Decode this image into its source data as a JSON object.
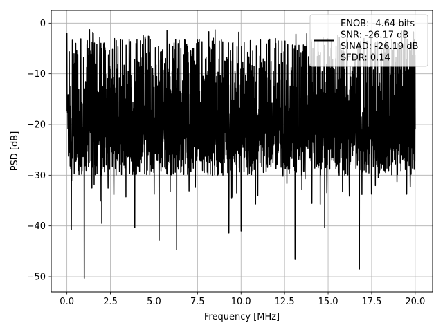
{
  "chart_data": {
    "type": "line",
    "title": "",
    "xlabel": "Frequency [MHz]",
    "ylabel": "PSD [dB]",
    "xlim": [
      -0.9,
      21.0
    ],
    "ylim": [
      -53,
      2.5
    ],
    "xticks": [
      0.0,
      2.5,
      5.0,
      7.5,
      10.0,
      12.5,
      15.0,
      17.5,
      20.0
    ],
    "xtick_labels": [
      "0.0",
      "2.5",
      "5.0",
      "7.5",
      "10.0",
      "12.5",
      "15.0",
      "17.5",
      "20.0"
    ],
    "yticks": [
      0,
      -10,
      -20,
      -30,
      -40,
      -50
    ],
    "ytick_labels": [
      "0",
      "−10",
      "−20",
      "−30",
      "−40",
      "−50"
    ],
    "grid": true,
    "legend_position": "top-right",
    "series": [
      {
        "color": "#000000",
        "description": "dense noise-like power spectral density trace",
        "start": {
          "x": 0.0,
          "y": -2.0
        },
        "x_range": [
          0.0,
          20.0
        ],
        "upper_envelope_db": -3,
        "median_band_db": [
          -22,
          -8
        ],
        "deep_minima": [
          {
            "x": 0.25,
            "y": -40.7
          },
          {
            "x": 1.0,
            "y": -50.3
          },
          {
            "x": 2.0,
            "y": -39.5
          },
          {
            "x": 3.9,
            "y": -40.3
          },
          {
            "x": 5.3,
            "y": -42.8
          },
          {
            "x": 6.3,
            "y": -44.7
          },
          {
            "x": 9.3,
            "y": -41.4
          },
          {
            "x": 10.0,
            "y": -41.0
          },
          {
            "x": 13.1,
            "y": -46.6
          },
          {
            "x": 14.8,
            "y": -40.3
          },
          {
            "x": 16.8,
            "y": -48.5
          }
        ]
      }
    ],
    "legend": {
      "lines": [
        "ENOB: -4.64 bits",
        "SNR: -26.17 dB",
        "SINAD: -26.19 dB",
        "SFDR: 0.14"
      ]
    }
  }
}
